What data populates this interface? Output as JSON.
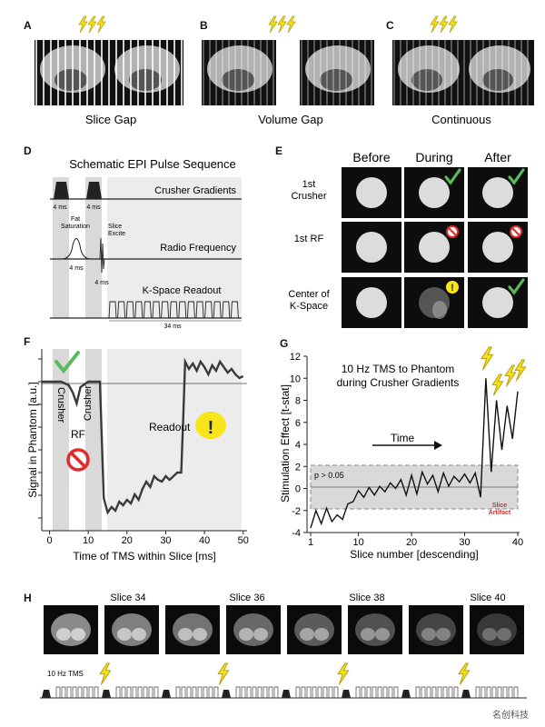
{
  "panel_labels": [
    "A",
    "B",
    "C",
    "D",
    "E",
    "F",
    "G",
    "H"
  ],
  "panel_a": {
    "caption": "Slice Gap"
  },
  "panel_b": {
    "caption": "Volume Gap"
  },
  "panel_c": {
    "caption": "Continuous"
  },
  "panel_d": {
    "title": "Schematic EPI Pulse Sequence",
    "rows": {
      "crusher": "Crusher Gradients",
      "rf": "Radio Frequency",
      "kspace": "K-Space Readout"
    },
    "fat_saturation": "Fat\nSaturation",
    "slice_excite": "Slice\nExcite",
    "dur_crusher_1": "4 ms",
    "dur_crusher_2": "4 ms",
    "dur_fatsat": "4 ms",
    "dur_excite": "4 ms",
    "dur_readout": "34 ms"
  },
  "panel_e": {
    "columns": [
      "Before",
      "During",
      "After"
    ],
    "rows": [
      {
        "label": "1st\nCrusher",
        "during": "check",
        "after": "check"
      },
      {
        "label": "1st RF",
        "during": "no",
        "after": "no"
      },
      {
        "label": "Center of\nK-Space",
        "during": "warning",
        "after": "check"
      }
    ]
  },
  "panel_f": {
    "ylabel": "Signal in Phantom [a.u.]",
    "xlabel": "Time of TMS within Slice [ms]",
    "crusher_label_1": "Crusher",
    "crusher_label_2": "Crusher",
    "rf_label": "RF",
    "readout_label": "Readout"
  },
  "panel_g": {
    "title": "10 Hz TMS to Phantom\nduring Crusher Gradients",
    "ylabel": "Stimulation Effect [t-stat]",
    "xlabel": "Slice number [descending]",
    "time_label": "Time",
    "p_label": "p > 0.05",
    "artifact_label": "Slice\nArtifact"
  },
  "panel_h": {
    "slice_labels": [
      "Slice 34",
      "Slice 36",
      "Slice 38",
      "Slice 40"
    ],
    "tms_label": "10 Hz TMS"
  },
  "watermark": "名创科技",
  "colors": {
    "bolt": "#f3e11e",
    "check": "#5cb85c",
    "no": "#e02b2b",
    "warn": "#f7e51a",
    "shade": "#d9d9d9"
  },
  "chart_data": [
    {
      "type": "line",
      "panel": "F",
      "xlabel": "Time of TMS within Slice [ms]",
      "ylabel": "Signal in Phantom [a.u.]",
      "xlim": [
        -2,
        51
      ],
      "xticks": [
        0,
        10,
        20,
        30,
        40,
        50
      ],
      "series": [
        {
          "x": [
            -2,
            0,
            3,
            5,
            6,
            7,
            8,
            10,
            11,
            12,
            13,
            13.5,
            14,
            15,
            16,
            17,
            18,
            19,
            20,
            21,
            22,
            23,
            24,
            25,
            26,
            27,
            28,
            29,
            30,
            31,
            32,
            33,
            34,
            34.5,
            35,
            36,
            37,
            38,
            39,
            40,
            41,
            42,
            43,
            44,
            45,
            46,
            47,
            48,
            49,
            50
          ],
          "y": [
            0.82,
            0.82,
            0.82,
            0.8,
            0.76,
            0.7,
            0.79,
            0.82,
            0.82,
            0.82,
            0.82,
            0.5,
            0.18,
            0.1,
            0.13,
            0.11,
            0.16,
            0.14,
            0.17,
            0.15,
            0.2,
            0.17,
            0.23,
            0.27,
            0.24,
            0.3,
            0.28,
            0.27,
            0.3,
            0.28,
            0.3,
            0.32,
            0.32,
            0.6,
            0.93,
            0.89,
            0.92,
            0.88,
            0.93,
            0.9,
            0.86,
            0.91,
            0.88,
            0.93,
            0.9,
            0.87,
            0.89,
            0.86,
            0.84,
            0.85
          ]
        }
      ]
    },
    {
      "type": "line",
      "panel": "G",
      "xlabel": "Slice number [descending]",
      "ylabel": "Stimulation Effect [t-stat]",
      "xlim": [
        1,
        40
      ],
      "ylim": [
        -4,
        12
      ],
      "xticks": [
        1,
        10,
        20,
        30,
        40
      ],
      "yticks": [
        -4,
        -2,
        0,
        2,
        4,
        6,
        8,
        10,
        12
      ],
      "significance_band": [
        -2,
        2
      ],
      "series": [
        {
          "x": [
            1,
            2,
            3,
            4,
            5,
            6,
            7,
            8,
            9,
            10,
            11,
            12,
            13,
            14,
            15,
            16,
            17,
            18,
            19,
            20,
            21,
            22,
            23,
            24,
            25,
            26,
            27,
            28,
            29,
            30,
            31,
            32,
            33,
            34,
            35,
            36,
            37,
            38,
            39,
            40
          ],
          "y": [
            -3.6,
            -2,
            -3.2,
            -1.8,
            -3,
            -2.4,
            -2.8,
            -1.4,
            -1.2,
            -0.2,
            -0.8,
            0.1,
            -0.6,
            0.2,
            -0.3,
            0.5,
            0,
            0.8,
            -0.6,
            1.2,
            -0.5,
            1.5,
            0.4,
            1.2,
            -0.3,
            1.4,
            0.2,
            1.1,
            0.6,
            1.3,
            0.5,
            1.4,
            -0.8,
            10,
            1.5,
            8,
            3.5,
            7.5,
            4.5,
            8.8
          ]
        }
      ]
    }
  ]
}
